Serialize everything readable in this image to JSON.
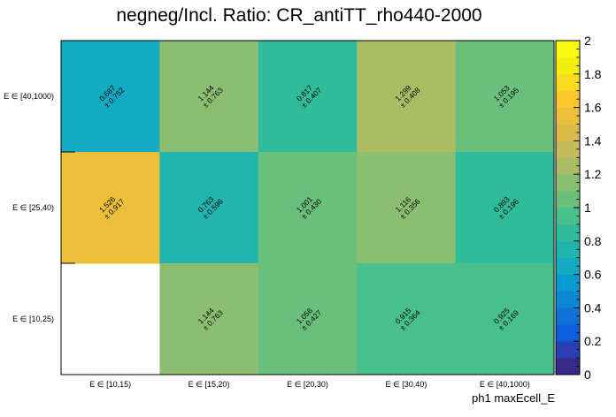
{
  "chart_data": {
    "type": "heatmap",
    "title": "negneg/Incl. Ratio: CR_antiTT_rho440-2000",
    "xlabel": "ph1 maxEcell_E",
    "ylabel": "",
    "x_categories": [
      "E ∈ [10,15)",
      "E ∈ [15,20)",
      "E ∈ [20,30)",
      "E ∈ [30,40)",
      "E ∈ [40,1000)"
    ],
    "y_categories": [
      "E ∈ [40,1000)",
      "E ∈ [25,40)",
      "E ∈ [10,25)"
    ],
    "values": [
      [
        0.687,
        1.144,
        0.817,
        1.299,
        1.053
      ],
      [
        1.526,
        0.763,
        1.001,
        1.116,
        0.893
      ],
      [
        null,
        1.144,
        1.056,
        0.915,
        0.925
      ]
    ],
    "errors": [
      [
        0.752,
        0.763,
        0.407,
        0.408,
        0.195
      ],
      [
        0.917,
        0.596,
        0.43,
        0.356,
        0.196
      ],
      [
        null,
        0.763,
        0.427,
        0.364,
        0.169
      ]
    ],
    "value_labels": [
      [
        "0.687",
        "1.144",
        "0.817",
        "1.299",
        "1.053"
      ],
      [
        "1.526",
        "0.763",
        "1.001",
        "1.116",
        "0.893"
      ],
      [
        null,
        "1.144",
        "1.056",
        "0.915",
        "0.925"
      ]
    ],
    "error_labels": [
      [
        "± 0.752",
        "± 0.763",
        "± 0.407",
        "± 0.408",
        "± 0.195"
      ],
      [
        "± 0.917",
        "± 0.596",
        "± 0.430",
        "± 0.356",
        "± 0.196"
      ],
      [
        null,
        "± 0.763",
        "± 0.427",
        "± 0.364",
        "± 0.169"
      ]
    ],
    "zlim": [
      0,
      2
    ],
    "colorbar_ticks": [
      "0",
      "0.2",
      "0.4",
      "0.6",
      "0.8",
      "1",
      "1.2",
      "1.4",
      "1.6",
      "1.8",
      "2"
    ],
    "palette": [
      "#352a87",
      "#2a3fb3",
      "#0f5cdd",
      "#1072d9",
      "#0d86d4",
      "#079ccf",
      "#14aac2",
      "#20b4ad",
      "#30bb9a",
      "#49bf8b",
      "#6abf7c",
      "#8cbe71",
      "#aabd65",
      "#c4bb5a",
      "#dabb4a",
      "#ecbf3b",
      "#f9c92c",
      "#f7db1c",
      "#f5ef10",
      "#f9fb0e"
    ],
    "grid": false,
    "legend": "colorbar-right"
  }
}
